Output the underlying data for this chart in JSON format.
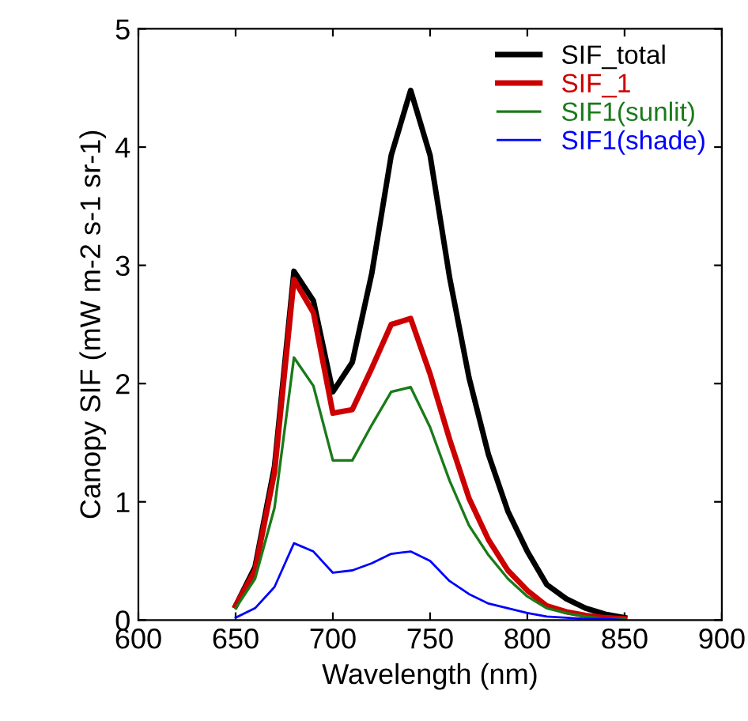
{
  "chart_data": {
    "type": "line",
    "xlabel": "Wavelength (nm)",
    "ylabel": "Canopy SIF (mW m-2 s-1 sr-1)",
    "x": [
      650,
      660,
      670,
      680,
      690,
      700,
      710,
      720,
      730,
      740,
      750,
      760,
      770,
      780,
      790,
      800,
      810,
      820,
      830,
      840,
      850
    ],
    "series": [
      {
        "name": "SIF_total",
        "color": "#000000",
        "values": [
          0.12,
          0.45,
          1.3,
          2.95,
          2.7,
          1.93,
          2.18,
          2.93,
          3.93,
          4.48,
          3.93,
          2.9,
          2.05,
          1.4,
          0.92,
          0.58,
          0.3,
          0.18,
          0.1,
          0.05,
          0.02
        ]
      },
      {
        "name": "SIF_1",
        "color": "#cc0000",
        "values": [
          0.12,
          0.42,
          1.25,
          2.88,
          2.6,
          1.75,
          1.78,
          2.13,
          2.5,
          2.55,
          2.08,
          1.53,
          1.03,
          0.68,
          0.42,
          0.25,
          0.12,
          0.07,
          0.04,
          0.02,
          0.01
        ]
      },
      {
        "name": "SIF1(sunlit)",
        "color": "#1a7a1a",
        "values": [
          0.1,
          0.35,
          0.95,
          2.22,
          1.98,
          1.35,
          1.35,
          1.65,
          1.93,
          1.97,
          1.63,
          1.18,
          0.8,
          0.55,
          0.35,
          0.2,
          0.1,
          0.06,
          0.03,
          0.01,
          0.01
        ]
      },
      {
        "name": "SIF1(shade)",
        "color": "#0000ff",
        "values": [
          0.02,
          0.1,
          0.28,
          0.65,
          0.58,
          0.4,
          0.42,
          0.48,
          0.56,
          0.58,
          0.5,
          0.33,
          0.22,
          0.14,
          0.1,
          0.06,
          0.03,
          0.02,
          0.01,
          0.01,
          0.0
        ]
      }
    ],
    "xlim": [
      600,
      900
    ],
    "xticks": [
      600,
      650,
      700,
      750,
      800,
      850,
      900
    ],
    "ylim": [
      0,
      5
    ],
    "yticks": [
      0,
      1,
      2,
      3,
      4,
      5
    ],
    "legend": "top right",
    "grid": false,
    "marker": "none",
    "line_style": "solid"
  }
}
